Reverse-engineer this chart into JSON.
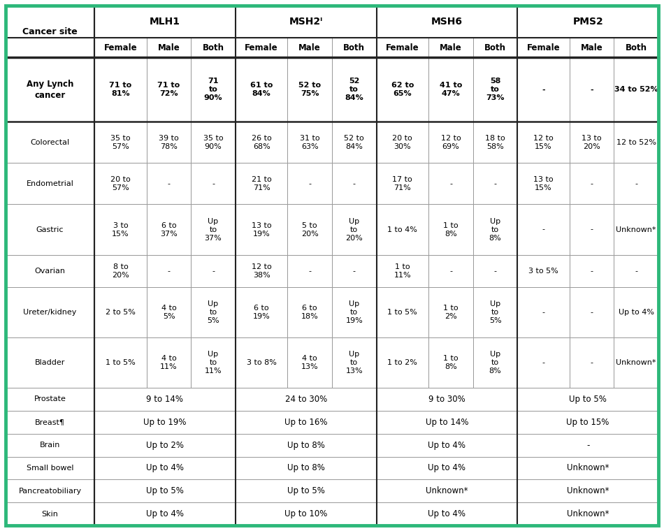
{
  "border_color": "#2db87a",
  "header_bg": "#ffffff",
  "cell_bg": "#ffffff",
  "grid_color": "#999999",
  "thick_line_color": "#222222",
  "gene_names": [
    "MLH1",
    "MSH2ᴵ",
    "MSH6",
    "PMS2"
  ],
  "sub_headers": [
    "Female",
    "Male",
    "Both"
  ],
  "rows": [
    {
      "site": "Any Lynch\ncancer",
      "bold": true,
      "span": false,
      "values": [
        "71 to\n81%",
        "71 to\n72%",
        "71\nto\n90%",
        "61 to\n84%",
        "52 to\n75%",
        "52\nto\n84%",
        "62 to\n65%",
        "41 to\n47%",
        "58\nto\n73%",
        "-",
        "-",
        "34 to 52%"
      ]
    },
    {
      "site": "Colorectal",
      "bold": false,
      "span": false,
      "values": [
        "35 to\n57%",
        "39 to\n78%",
        "35 to\n90%",
        "26 to\n68%",
        "31 to\n63%",
        "52 to\n84%",
        "20 to\n30%",
        "12 to\n69%",
        "18 to\n58%",
        "12 to\n15%",
        "13 to\n20%",
        "12 to 52%"
      ]
    },
    {
      "site": "Endometrial",
      "bold": false,
      "span": false,
      "values": [
        "20 to\n57%",
        "-",
        "-",
        "21 to\n71%",
        "-",
        "-",
        "17 to\n71%",
        "-",
        "-",
        "13 to\n15%",
        "-",
        "-"
      ]
    },
    {
      "site": "Gastric",
      "bold": false,
      "span": false,
      "values": [
        "3 to\n15%",
        "6 to\n37%",
        "Up\nto\n37%",
        "13 to\n19%",
        "5 to\n20%",
        "Up\nto\n20%",
        "1 to 4%",
        "1 to\n8%",
        "Up\nto\n8%",
        "-",
        "-",
        "Unknown*"
      ]
    },
    {
      "site": "Ovarian",
      "bold": false,
      "span": false,
      "values": [
        "8 to\n20%",
        "-",
        "-",
        "12 to\n38%",
        "-",
        "-",
        "1 to\n11%",
        "-",
        "-",
        "3 to 5%",
        "-",
        "-"
      ]
    },
    {
      "site": "Ureter/kidney",
      "bold": false,
      "span": false,
      "values": [
        "2 to 5%",
        "4 to\n5%",
        "Up\nto\n5%",
        "6 to\n19%",
        "6 to\n18%",
        "Up\nto\n19%",
        "1 to 5%",
        "1 to\n2%",
        "Up\nto\n5%",
        "-",
        "-",
        "Up to 4%"
      ]
    },
    {
      "site": "Bladder",
      "bold": false,
      "span": false,
      "values": [
        "1 to 5%",
        "4 to\n11%",
        "Up\nto\n11%",
        "3 to 8%",
        "4 to\n13%",
        "Up\nto\n13%",
        "1 to 2%",
        "1 to\n8%",
        "Up\nto\n8%",
        "-",
        "-",
        "Unknown*"
      ]
    },
    {
      "site": "Prostate",
      "bold": false,
      "span": true,
      "values": [
        "9 to 14%",
        "24 to 30%",
        "9 to 30%",
        "Up to 5%"
      ]
    },
    {
      "site": "Breast¶",
      "bold": false,
      "span": true,
      "values": [
        "Up to 19%",
        "Up to 16%",
        "Up to 14%",
        "Up to 15%"
      ]
    },
    {
      "site": "Brain",
      "bold": false,
      "span": true,
      "values": [
        "Up to 2%",
        "Up to 8%",
        "Up to 4%",
        "-"
      ]
    },
    {
      "site": "Small bowel",
      "bold": false,
      "span": true,
      "values": [
        "Up to 4%",
        "Up to 8%",
        "Up to 4%",
        "Unknown*"
      ]
    },
    {
      "site": "Pancreatobiliary",
      "bold": false,
      "span": true,
      "values": [
        "Up to 5%",
        "Up to 5%",
        "Unknown*",
        "Unknown*"
      ]
    },
    {
      "site": "Skin",
      "bold": false,
      "span": true,
      "values": [
        "Up to 4%",
        "Up to 10%",
        "Up to 4%",
        "Unknown*"
      ]
    }
  ]
}
